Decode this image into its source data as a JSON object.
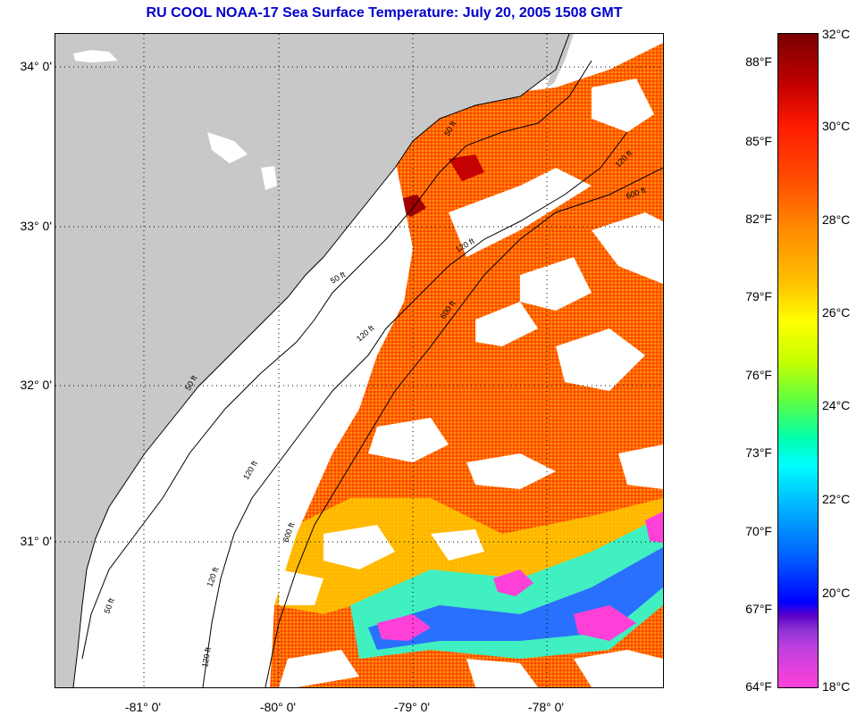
{
  "title": "RU COOL  NOAA-17  Sea Surface Temperature:  July 20, 2005 1508 GMT",
  "latitude_labels": [
    "34° 0'",
    "33° 0'",
    "32° 0'",
    "31° 0'"
  ],
  "longitude_labels": [
    "-81° 0'",
    "-80° 0'",
    "-79° 0'",
    "-78° 0'"
  ],
  "contour_labels": [
    "50 ft",
    "120 ft",
    "600 ft"
  ],
  "colorbar": {
    "fahrenheit": [
      "88°F",
      "85°F",
      "82°F",
      "79°F",
      "76°F",
      "73°F",
      "70°F",
      "67°F",
      "64°F"
    ],
    "celsius": [
      "32°C",
      "30°C",
      "28°C",
      "26°C",
      "24°C",
      "22°C",
      "20°C",
      "18°C"
    ]
  },
  "colors": {
    "land": "#c8c8c8",
    "cloud": "#ffffff",
    "warm": "#ff4400",
    "hot": "#8a0000",
    "cool": "#00e0ff",
    "cold": "#ff40d8",
    "title": "#0000cc"
  }
}
